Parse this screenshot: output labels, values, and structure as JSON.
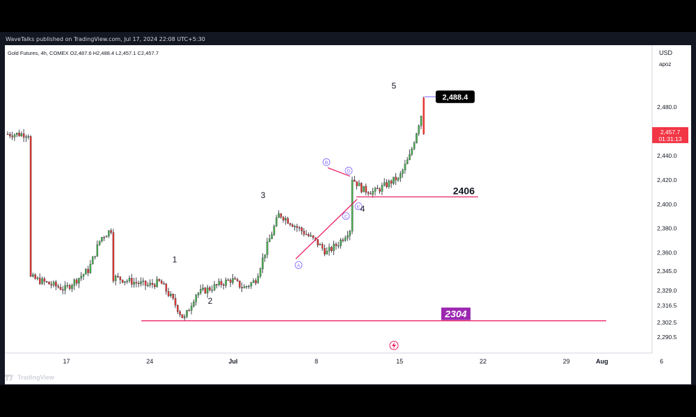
{
  "header": {
    "published_text": "WaveTalks published on TradingView.com, Jul 17, 2024 22:08 UTC+5:30"
  },
  "legend": {
    "symbol": "Gold Futures, 4h, COMEX",
    "o_label": "O",
    "o_value": "2,487.6",
    "h_label": "H",
    "h_value": "2,488.4",
    "l_label": "L",
    "l_value": "2,457.1",
    "c_label": "C",
    "c_value": "2,457.7"
  },
  "price_scale": {
    "currency": "USD",
    "mode": "apoz",
    "ticks": [
      "2,480.0",
      "2,460.0",
      "2,440.0",
      "2,420.0",
      "2,400.0",
      "2,380.0",
      "2,360.0",
      "2,345.0",
      "2,329.0",
      "2,316.5",
      "2,302.5",
      "2,290.5"
    ],
    "current_price": "2,457.7",
    "countdown": "01:31:13"
  },
  "time_scale": {
    "ticks": [
      "17",
      "24",
      "Jul",
      "8",
      "15",
      "22",
      "29",
      "Aug",
      "6"
    ]
  },
  "annotations": {
    "wave_labels": [
      "1",
      "2",
      "3",
      "4",
      "5"
    ],
    "triangle_labels": [
      "A",
      "B",
      "C",
      "D",
      "E"
    ],
    "high_tag": "2,488.4",
    "level_2406": "2406",
    "level_2304": "2304"
  },
  "footer": {
    "brand": "TradingView"
  },
  "colors": {
    "up": "#26a69a",
    "up_body": "#4caf50",
    "down": "#e53935",
    "line_pink": "#e91e63",
    "line_purple": "#7b61ff",
    "tag_black": "#000000",
    "tag_purple": "#9c27b0",
    "price_red": "#f23645"
  },
  "chart_data": {
    "type": "candlestick",
    "symbol": "Gold Futures",
    "interval": "4h",
    "ylim": [
      2286,
      2500
    ],
    "close_path": [
      [
        "2024-06-14",
        2340
      ],
      [
        "2024-06-17",
        2330
      ],
      [
        "2024-06-19",
        2346
      ],
      [
        "2024-06-20",
        2372
      ],
      [
        "2024-06-21",
        2380
      ],
      [
        "2024-06-21",
        2340
      ],
      [
        "2024-06-24",
        2333
      ],
      [
        "2024-06-25",
        2336
      ],
      [
        "2024-06-26",
        2322
      ],
      [
        "2024-06-27",
        2305
      ],
      [
        "2024-06-28",
        2326
      ],
      [
        "2024-07-01",
        2338
      ],
      [
        "2024-07-02",
        2331
      ],
      [
        "2024-07-03",
        2337
      ],
      [
        "2024-07-04",
        2366
      ],
      [
        "2024-07-05",
        2392
      ],
      [
        "2024-07-08",
        2370
      ],
      [
        "2024-07-09",
        2360
      ],
      [
        "2024-07-10",
        2368
      ],
      [
        "2024-07-11",
        2380
      ],
      [
        "2024-07-11",
        2423
      ],
      [
        "2024-07-12",
        2412
      ],
      [
        "2024-07-13",
        2410
      ],
      [
        "2024-07-15",
        2422
      ],
      [
        "2024-07-15",
        2420
      ],
      [
        "2024-07-16",
        2440
      ],
      [
        "2024-07-17",
        2476
      ],
      [
        "2024-07-17",
        2488.4
      ],
      [
        "2024-07-17",
        2457.7
      ]
    ],
    "levels": [
      2406,
      2304,
      2488.4
    ]
  }
}
